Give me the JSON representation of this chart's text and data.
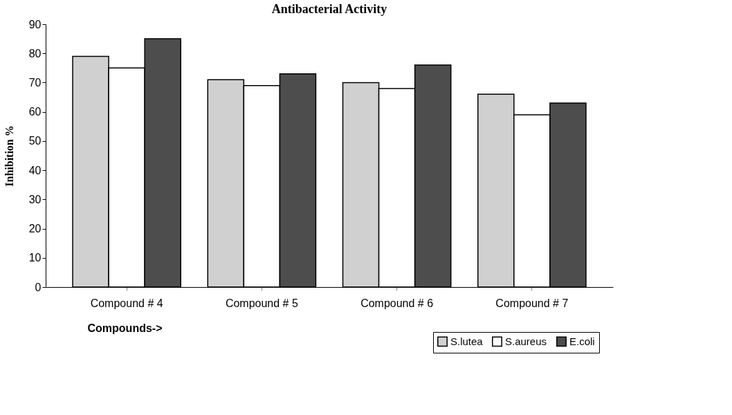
{
  "chart_data": {
    "type": "bar",
    "title": "Antibacterial Activity",
    "xlabel": "Compounds->",
    "ylabel": "Inhibition %",
    "categories": [
      "Compound # 4",
      "Compound # 5",
      "Compound # 6",
      "Compound # 7"
    ],
    "series": [
      {
        "name": "S.lutea",
        "color": "#d0d0d0",
        "values": [
          79,
          71,
          70,
          66
        ]
      },
      {
        "name": "S.aureus",
        "color": "#ffffff",
        "values": [
          75,
          69,
          68,
          59
        ]
      },
      {
        "name": "E.coli",
        "color": "#4d4d4d",
        "values": [
          85,
          73,
          76,
          63
        ]
      }
    ],
    "ylim": [
      0,
      90
    ],
    "yticks": [
      0,
      10,
      20,
      30,
      40,
      50,
      60,
      70,
      80,
      90
    ],
    "grid": false,
    "legend": "bottom right"
  }
}
